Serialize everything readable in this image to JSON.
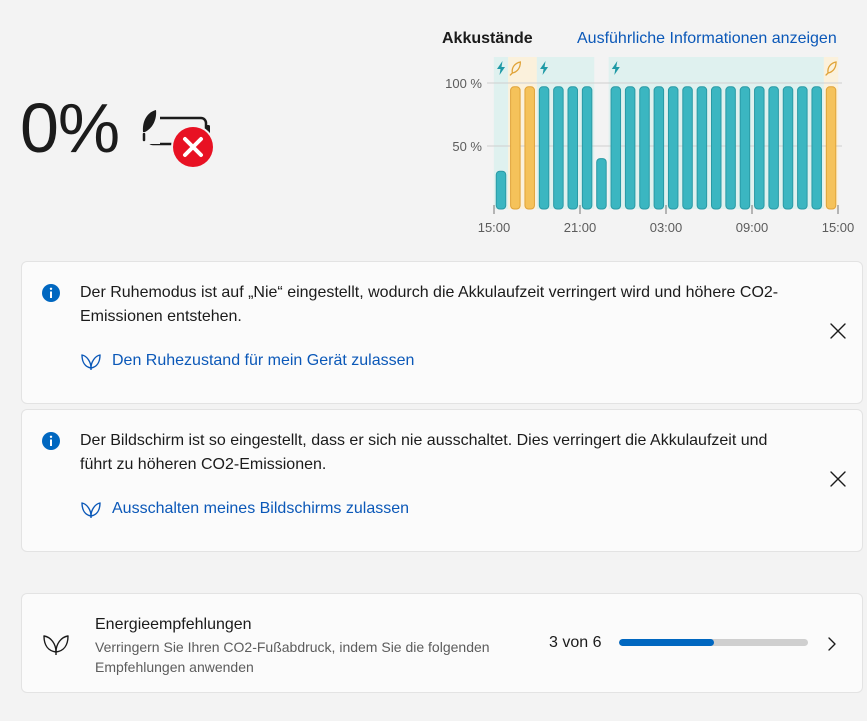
{
  "battery": {
    "percent": "0%"
  },
  "chart": {
    "title": "Akkustände",
    "details_link": "Ausführliche Informationen anzeigen"
  },
  "chart_data": {
    "type": "bar",
    "title": "Akkustände",
    "y_ticks": [
      "100 %",
      "50 %"
    ],
    "x_ticks": [
      "15:00",
      "21:00",
      "03:00",
      "09:00",
      "15:00"
    ],
    "ylim": [
      0,
      100
    ],
    "grid": true,
    "legend": "none",
    "colors": {
      "charging": "#3bb6c1",
      "saver": "#f5c25a",
      "charging_band": "#dff1ef",
      "saver_band": "#fbf1dc"
    },
    "values": [
      30,
      97,
      97,
      97,
      97,
      97,
      97,
      40,
      97,
      97,
      97,
      97,
      97,
      97,
      97,
      97,
      97,
      97,
      97,
      97,
      97,
      97,
      97,
      97
    ],
    "states": [
      "charging",
      "saver",
      "saver",
      "charging",
      "charging",
      "charging",
      "charging",
      "charging",
      "charging",
      "charging",
      "charging",
      "charging",
      "charging",
      "charging",
      "charging",
      "charging",
      "charging",
      "charging",
      "charging",
      "charging",
      "charging",
      "charging",
      "charging",
      "saver"
    ],
    "markers": [
      {
        "bar": 0,
        "icon": "lightning-icon"
      },
      {
        "bar": 1,
        "icon": "leaf-icon"
      },
      {
        "bar": 3,
        "icon": "lightning-icon"
      },
      {
        "bar": 8,
        "icon": "lightning-icon"
      },
      {
        "bar": 23,
        "icon": "leaf-icon"
      }
    ]
  },
  "cards": [
    {
      "message": "Der Ruhemodus ist auf „Nie“ eingestellt, wodurch die Akkulaufzeit verringert wird und höhere CO2-Emissionen entstehen.",
      "action": "Den Ruhezustand für mein Gerät zulassen"
    },
    {
      "message": "Der Bildschirm ist so eingestellt, dass er sich nie ausschaltet. Dies verringert die Akkulaufzeit und führt zu höheren CO2-Emissionen.",
      "action": "Ausschalten meines Bildschirms zulassen"
    }
  ],
  "energy": {
    "title": "Energieempfehlungen",
    "description": "Verringern Sie Ihren CO2-Fußabdruck, indem Sie die folgenden Empfehlungen anwenden",
    "count": "3 von 6",
    "progress": 0.5
  },
  "icons": {
    "battery": "battery-saver-error-icon",
    "info": "info-icon",
    "close": "close-icon",
    "leaf": "leaf-icon",
    "chevron": "chevron-right-icon"
  },
  "colors": {
    "accent": "#0067c0",
    "link": "#0b58b8",
    "error": "#e81123"
  }
}
